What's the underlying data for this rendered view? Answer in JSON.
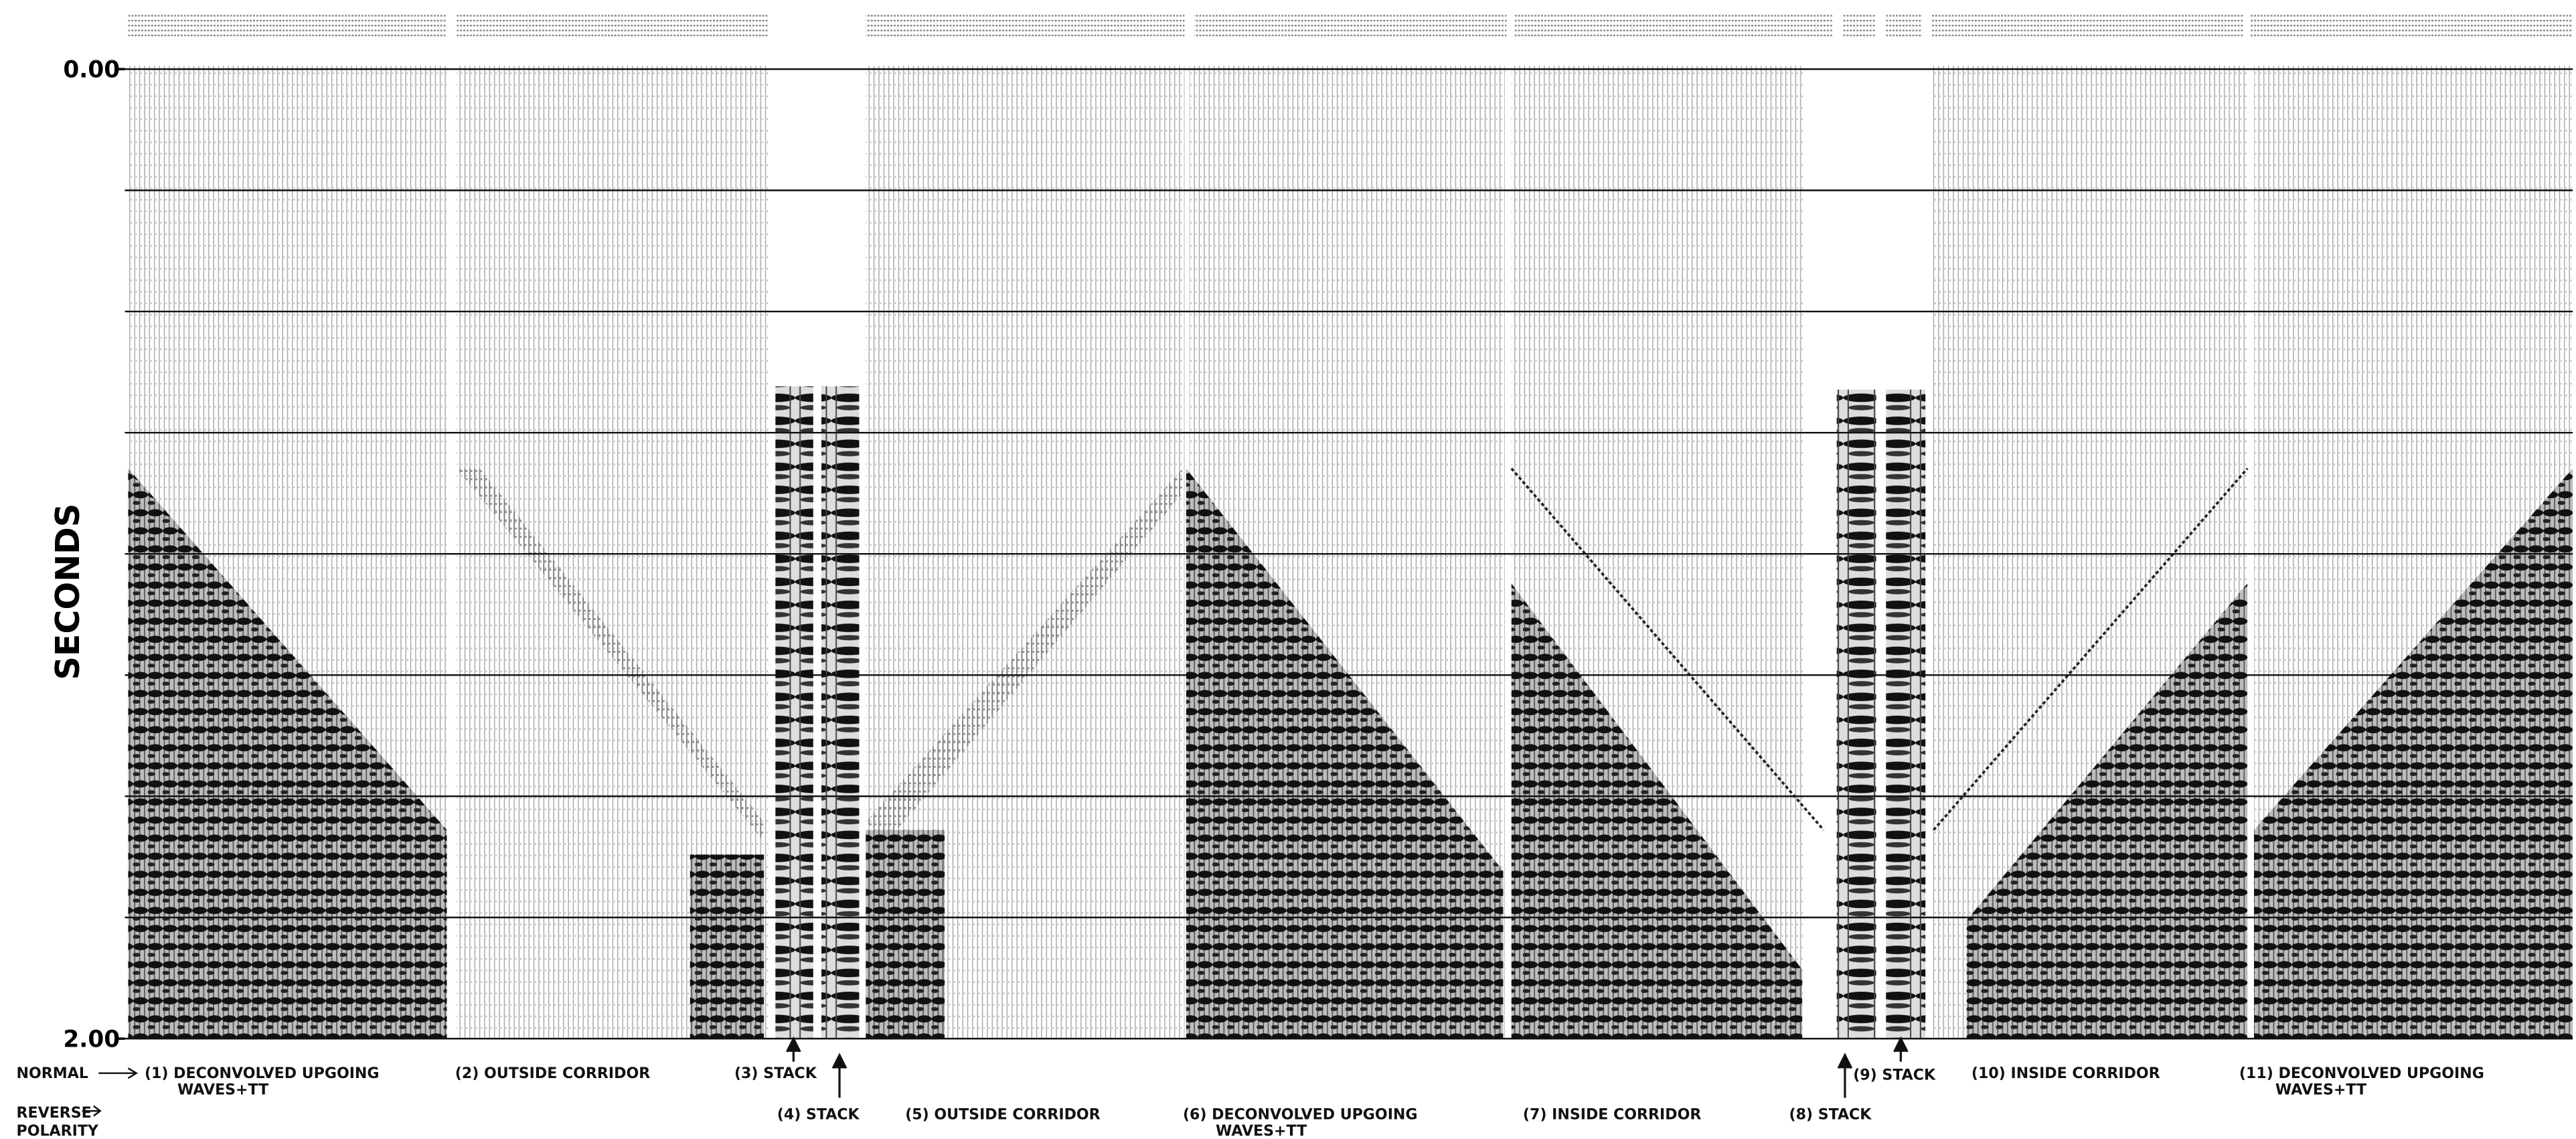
{
  "axis": {
    "label": "SECONDS",
    "ylim": [
      0,
      2
    ],
    "yticks": [
      {
        "value": 0,
        "label": "0.00"
      },
      {
        "value": 2,
        "label": "2.00"
      }
    ],
    "grid_interval": 0.25
  },
  "side_labels": {
    "normal": "NORMAL",
    "reverse": [
      "REVERSE",
      "POLARITY"
    ]
  },
  "panel_labels": [
    {
      "lines": [
        "(1) DECONVOLVED UPGOING",
        "WAVES+TT"
      ]
    },
    {
      "lines": [
        "(2) OUTSIDE CORRIDOR"
      ]
    },
    {
      "lines": [
        "(3) STACK"
      ]
    },
    {
      "lines": [
        "(4) STACK"
      ]
    },
    {
      "lines": [
        "(5) OUTSIDE CORRIDOR"
      ]
    },
    {
      "lines": [
        "(6) DECONVOLVED UPGOING",
        "WAVES+TT"
      ]
    },
    {
      "lines": [
        "(7) INSIDE CORRIDOR"
      ]
    },
    {
      "lines": [
        "(8) STACK"
      ]
    },
    {
      "lines": [
        "(9) STACK"
      ]
    },
    {
      "lines": [
        "(10) INSIDE CORRIDOR"
      ]
    },
    {
      "lines": [
        "(11) DECONVOLVED UPGOING",
        "WAVES+TT"
      ]
    }
  ]
}
